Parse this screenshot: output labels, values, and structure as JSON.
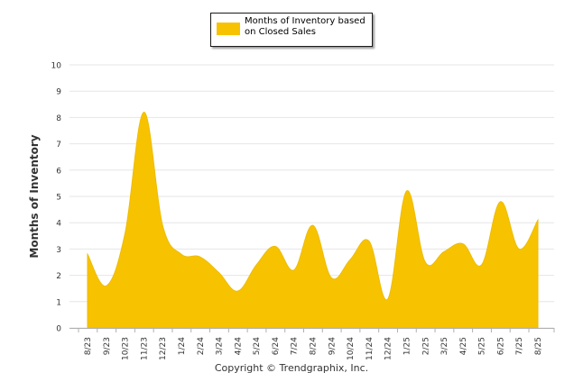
{
  "chart_data": {
    "type": "area",
    "legend": "Months of Inventory based on Closed Sales",
    "legend_position": "top-center",
    "ylabel": "Months of Inventory",
    "xlabel": "",
    "ylim": [
      0,
      10
    ],
    "yticks": [
      "0",
      "1",
      "2",
      "3",
      "4",
      "5",
      "6",
      "7",
      "8",
      "9",
      "10"
    ],
    "grid": true,
    "color": "#F7C300",
    "categories": [
      "8/23",
      "9/23",
      "10/23",
      "11/23",
      "12/23",
      "1/24",
      "2/24",
      "3/24",
      "4/24",
      "5/24",
      "6/24",
      "7/24",
      "8/24",
      "9/24",
      "10/24",
      "11/24",
      "12/24",
      "1/25",
      "2/25",
      "3/25",
      "4/25",
      "5/25",
      "6/25",
      "7/25",
      "8/25"
    ],
    "series": [
      {
        "name": "Months of Inventory based on Closed Sales",
        "values": [
          2.8,
          1.6,
          3.6,
          8.2,
          3.9,
          2.8,
          2.7,
          2.1,
          1.4,
          2.4,
          3.1,
          2.2,
          3.9,
          1.9,
          2.6,
          3.3,
          1.1,
          5.2,
          2.5,
          2.9,
          3.2,
          2.4,
          4.8,
          3.0,
          4.1
        ]
      }
    ],
    "footer": "Copyright © Trendgraphix, Inc."
  }
}
